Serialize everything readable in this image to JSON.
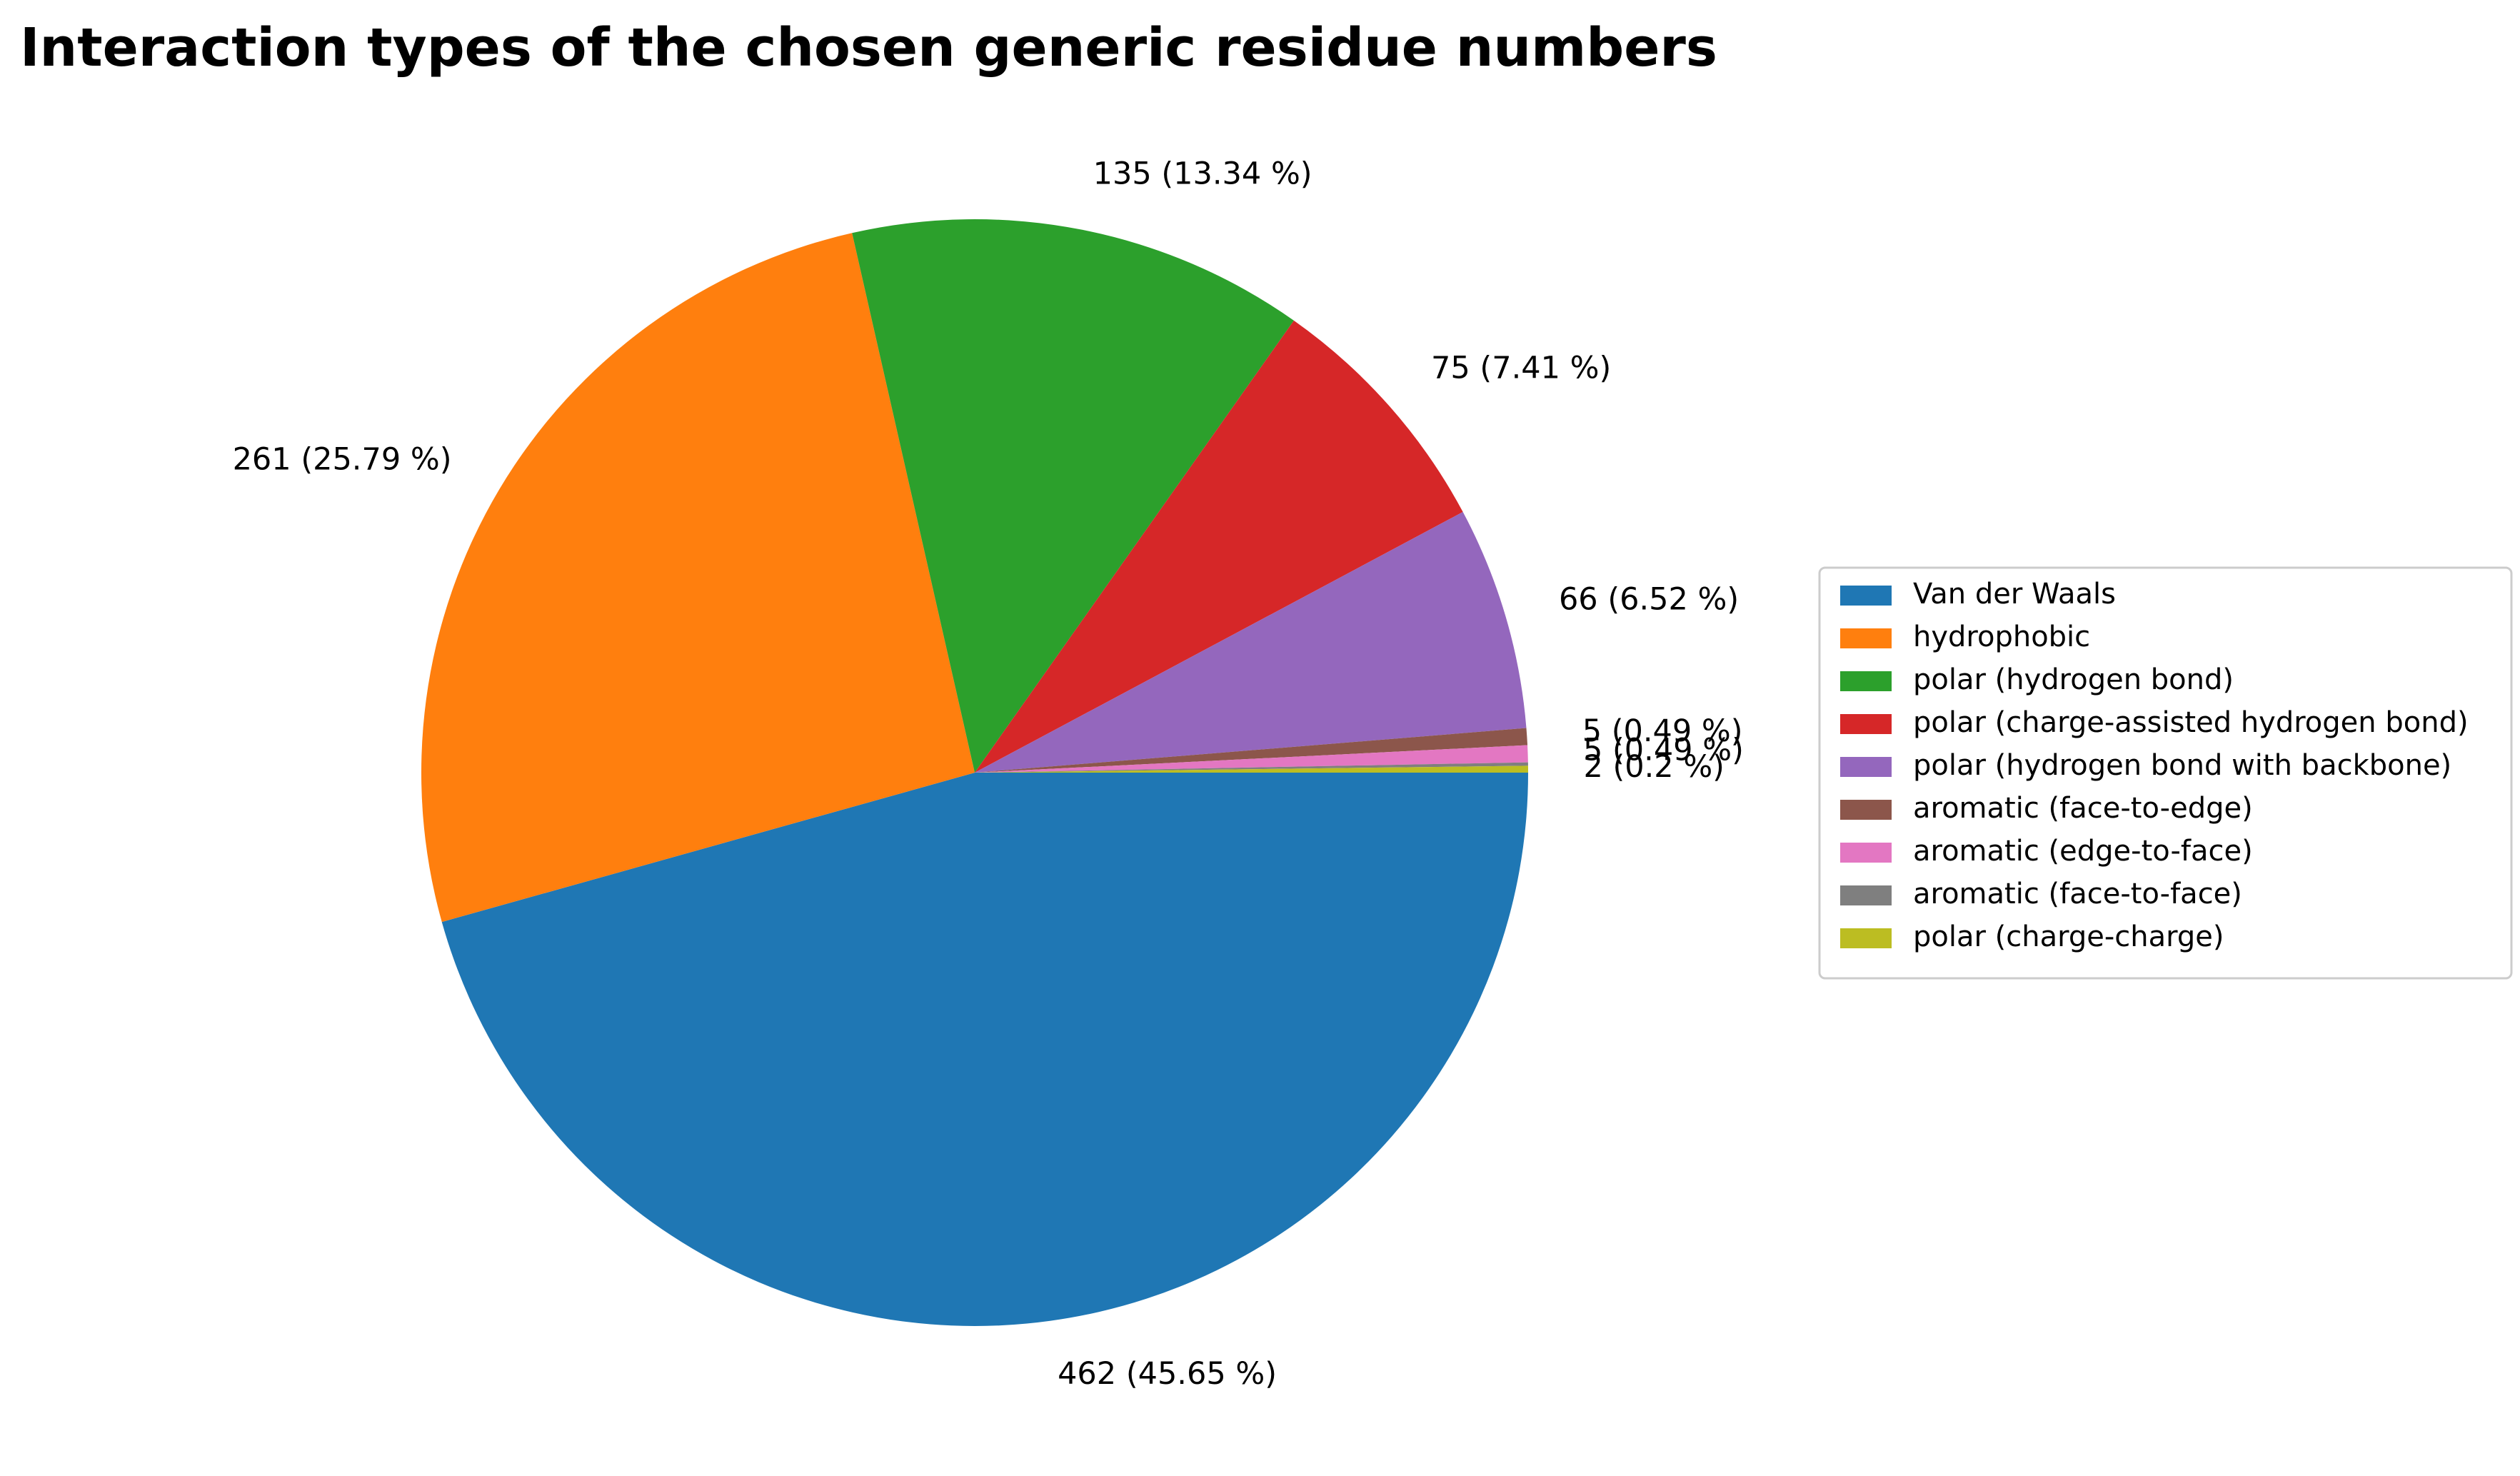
{
  "chart_data": {
    "type": "pie",
    "title": "Interaction types of the chosen generic residue numbers",
    "slices": [
      {
        "label": "Van der Waals",
        "value": 462,
        "percent": 45.65,
        "text": "462 (45.65 %)",
        "color": "#1f77b4"
      },
      {
        "label": "hydrophobic",
        "value": 261,
        "percent": 25.79,
        "text": "261 (25.79 %)",
        "color": "#ff7f0e"
      },
      {
        "label": "polar (hydrogen bond)",
        "value": 135,
        "percent": 13.34,
        "text": "135 (13.34 %)",
        "color": "#2ca02c"
      },
      {
        "label": "polar (charge-assisted hydrogen bond)",
        "value": 75,
        "percent": 7.41,
        "text": "75 (7.41 %)",
        "color": "#d62728"
      },
      {
        "label": "polar (hydrogen bond with backbone)",
        "value": 66,
        "percent": 6.52,
        "text": "66 (6.52 %)",
        "color": "#9467bd"
      },
      {
        "label": "aromatic (face-to-edge)",
        "value": 5,
        "percent": 0.49,
        "text": "5 (0.49 %)",
        "color": "#8c564b"
      },
      {
        "label": "aromatic (edge-to-face)",
        "value": 5,
        "percent": 0.49,
        "text": "5 (0.49 %)",
        "color": "#e377c2"
      },
      {
        "label": "aromatic (face-to-face)",
        "value": 1,
        "percent": 0.1,
        "text": "",
        "color": "#7f7f7f"
      },
      {
        "label": "polar (charge-charge)",
        "value": 2,
        "percent": 0.2,
        "text": "2 (0.2 %)",
        "color": "#bcbd22"
      }
    ],
    "start_angle_deg": 0,
    "direction": "clockwise",
    "legend_position": "right"
  }
}
